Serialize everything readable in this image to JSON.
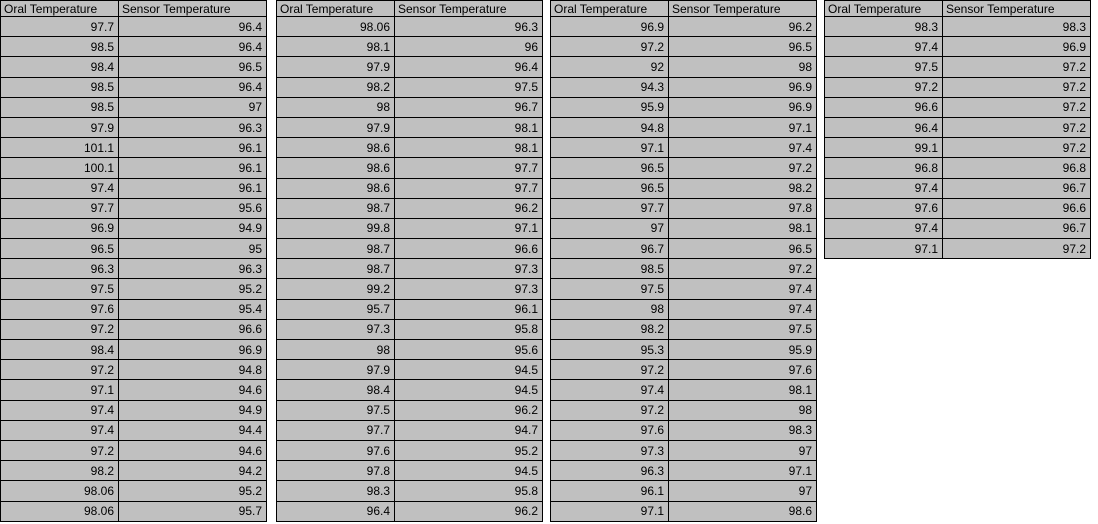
{
  "colors": {
    "cell_bg": "#c0c0c0",
    "grid_border": "#000000",
    "text": "#000000",
    "canvas_bg": "#ffffff"
  },
  "tables": [
    {
      "headers": [
        "Oral Temperature",
        "Sensor Temperature"
      ],
      "rows": [
        [
          "97.7",
          "96.4"
        ],
        [
          "98.5",
          "96.4"
        ],
        [
          "98.4",
          "96.5"
        ],
        [
          "98.5",
          "96.4"
        ],
        [
          "98.5",
          "97"
        ],
        [
          "97.9",
          "96.3"
        ],
        [
          "101.1",
          "96.1"
        ],
        [
          "100.1",
          "96.1"
        ],
        [
          "97.4",
          "96.1"
        ],
        [
          "97.7",
          "95.6"
        ],
        [
          "96.9",
          "94.9"
        ],
        [
          "96.5",
          "95"
        ],
        [
          "96.3",
          "96.3"
        ],
        [
          "97.5",
          "95.2"
        ],
        [
          "97.6",
          "95.4"
        ],
        [
          "97.2",
          "96.6"
        ],
        [
          "98.4",
          "96.9"
        ],
        [
          "97.2",
          "94.8"
        ],
        [
          "97.1",
          "94.6"
        ],
        [
          "97.4",
          "94.9"
        ],
        [
          "97.4",
          "94.4"
        ],
        [
          "97.2",
          "94.6"
        ],
        [
          "98.2",
          "94.2"
        ],
        [
          "98.06",
          "95.2"
        ],
        [
          "98.06",
          "95.7"
        ]
      ]
    },
    {
      "headers": [
        "Oral Temperature",
        "Sensor Temperature"
      ],
      "rows": [
        [
          "98.06",
          "96.3"
        ],
        [
          "98.1",
          "96"
        ],
        [
          "97.9",
          "96.4"
        ],
        [
          "98.2",
          "97.5"
        ],
        [
          "98",
          "96.7"
        ],
        [
          "97.9",
          "98.1"
        ],
        [
          "98.6",
          "98.1"
        ],
        [
          "98.6",
          "97.7"
        ],
        [
          "98.6",
          "97.7"
        ],
        [
          "98.7",
          "96.2"
        ],
        [
          "99.8",
          "97.1"
        ],
        [
          "98.7",
          "96.6"
        ],
        [
          "98.7",
          "97.3"
        ],
        [
          "99.2",
          "97.3"
        ],
        [
          "95.7",
          "96.1"
        ],
        [
          "97.3",
          "95.8"
        ],
        [
          "98",
          "95.6"
        ],
        [
          "97.9",
          "94.5"
        ],
        [
          "98.4",
          "94.5"
        ],
        [
          "97.5",
          "96.2"
        ],
        [
          "97.7",
          "94.7"
        ],
        [
          "97.6",
          "95.2"
        ],
        [
          "97.8",
          "94.5"
        ],
        [
          "98.3",
          "95.8"
        ],
        [
          "96.4",
          "96.2"
        ]
      ]
    },
    {
      "headers": [
        "Oral Temperature",
        "Sensor Temperature"
      ],
      "rows": [
        [
          "96.9",
          "96.2"
        ],
        [
          "97.2",
          "96.5"
        ],
        [
          "92",
          "98"
        ],
        [
          "94.3",
          "96.9"
        ],
        [
          "95.9",
          "96.9"
        ],
        [
          "94.8",
          "97.1"
        ],
        [
          "97.1",
          "97.4"
        ],
        [
          "96.5",
          "97.2"
        ],
        [
          "96.5",
          "98.2"
        ],
        [
          "97.7",
          "97.8"
        ],
        [
          "97",
          "98.1"
        ],
        [
          "96.7",
          "96.5"
        ],
        [
          "98.5",
          "97.2"
        ],
        [
          "97.5",
          "97.4"
        ],
        [
          "98",
          "97.4"
        ],
        [
          "98.2",
          "97.5"
        ],
        [
          "95.3",
          "95.9"
        ],
        [
          "97.2",
          "97.6"
        ],
        [
          "97.4",
          "98.1"
        ],
        [
          "97.2",
          "98"
        ],
        [
          "97.6",
          "98.3"
        ],
        [
          "97.3",
          "97"
        ],
        [
          "96.3",
          "97.1"
        ],
        [
          "96.1",
          "97"
        ],
        [
          "97.1",
          "98.6"
        ]
      ]
    },
    {
      "headers": [
        "Oral Temperature",
        "Sensor Temperature"
      ],
      "rows": [
        [
          "98.3",
          "98.3"
        ],
        [
          "97.4",
          "96.9"
        ],
        [
          "97.5",
          "97.2"
        ],
        [
          "97.2",
          "97.2"
        ],
        [
          "96.6",
          "97.2"
        ],
        [
          "96.4",
          "97.2"
        ],
        [
          "99.1",
          "97.2"
        ],
        [
          "96.8",
          "96.8"
        ],
        [
          "97.4",
          "96.7"
        ],
        [
          "97.6",
          "96.6"
        ],
        [
          "97.4",
          "96.7"
        ],
        [
          "97.1",
          "97.2"
        ]
      ]
    }
  ]
}
